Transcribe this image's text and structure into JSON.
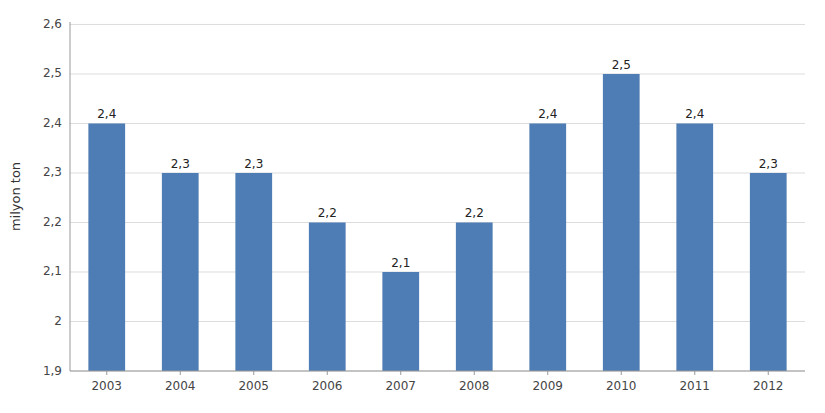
{
  "chart_data": {
    "type": "bar",
    "ylabel": "milyon ton",
    "categories": [
      "2003",
      "2004",
      "2005",
      "2006",
      "2007",
      "2008",
      "2009",
      "2010",
      "2011",
      "2012"
    ],
    "values": [
      2.4,
      2.3,
      2.3,
      2.2,
      2.1,
      2.2,
      2.4,
      2.5,
      2.4,
      2.3
    ],
    "value_labels": [
      "2,4",
      "2,3",
      "2,3",
      "2,2",
      "2,1",
      "2,2",
      "2,4",
      "2,5",
      "2,4",
      "2,3"
    ],
    "data_labels": true,
    "color": "#4e7db5",
    "ylim": [
      1.9,
      2.605
    ],
    "yticks": [
      {
        "value": 1.9,
        "label": "1,9"
      },
      2,
      {
        "value": 2.1,
        "label": "2,1"
      },
      {
        "value": 2.2,
        "label": "2,2"
      },
      {
        "value": 2.3,
        "label": "2,3"
      },
      {
        "value": 2.4,
        "label": "2,4"
      },
      {
        "value": 2.5,
        "label": "2,5"
      },
      {
        "value": 2.6,
        "label": "2,6"
      }
    ],
    "grid": true
  }
}
